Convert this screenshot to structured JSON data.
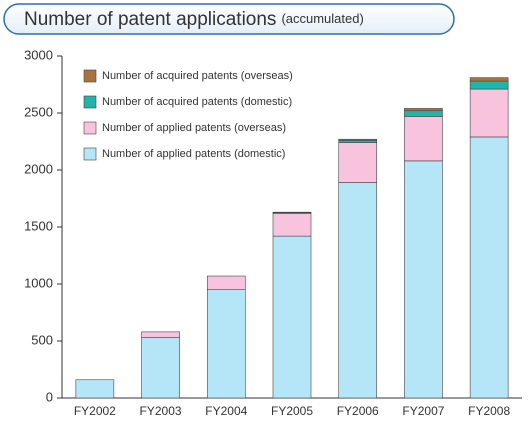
{
  "chart_data": {
    "type": "stacked_bar",
    "title": "Number of patent applications",
    "title_note": "(accumulated)",
    "categories": [
      "FY2002",
      "FY2003",
      "FY2004",
      "FY2005",
      "FY2006",
      "FY2007",
      "FY2008"
    ],
    "series": [
      {
        "name": "Number of applied patents (domestic)",
        "color": "#b5e6f8",
        "values": [
          160,
          530,
          950,
          1420,
          1890,
          2080,
          2290
        ]
      },
      {
        "name": "Number of applied patents (overseas)",
        "color": "#f8c3dc",
        "values": [
          0,
          50,
          120,
          200,
          350,
          390,
          420
        ]
      },
      {
        "name": "Number of acquired patents (domestic)",
        "color": "#1fb5ad",
        "values": [
          0,
          0,
          0,
          5,
          20,
          50,
          70
        ]
      },
      {
        "name": "Number of acquired patents (overseas)",
        "color": "#a8743e",
        "values": [
          0,
          0,
          0,
          5,
          10,
          20,
          30
        ]
      }
    ],
    "ylim": [
      0,
      3000
    ],
    "yticks": [
      0,
      500,
      1000,
      1500,
      2000,
      2500,
      3000
    ],
    "grid": false,
    "legend": "upper left"
  }
}
